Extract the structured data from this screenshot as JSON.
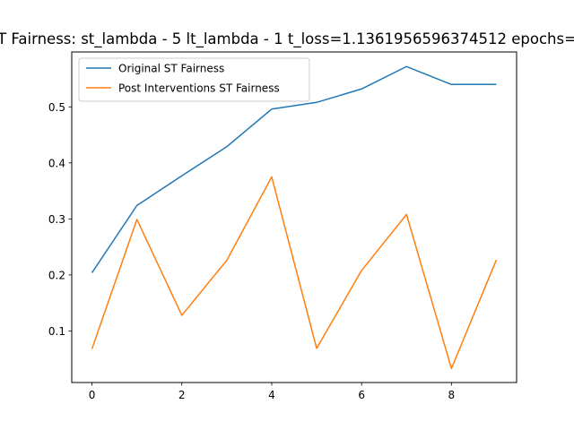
{
  "chart_data": {
    "type": "line",
    "title": "T Fairness: st_lambda - 5 lt_lambda - 1 t_loss=1.1361956596374512 epochs=",
    "xlabel": "",
    "ylabel": "",
    "x": [
      0,
      1,
      2,
      3,
      4,
      5,
      6,
      7,
      8,
      9
    ],
    "xticks": [
      0,
      2,
      4,
      6,
      8
    ],
    "yticks": [
      0.1,
      0.2,
      0.3,
      0.4,
      0.5
    ],
    "xlim": [
      -0.45,
      9.45
    ],
    "ylim": [
      0.008,
      0.598
    ],
    "grid": false,
    "legend_position": "top-left",
    "series": [
      {
        "name": "Original ST Fairness",
        "color": "#1f77b4",
        "values": [
          0.204,
          0.324,
          0.377,
          0.429,
          0.496,
          0.508,
          0.532,
          0.572,
          0.54,
          0.54
        ]
      },
      {
        "name": "Post Interventions ST Fairness",
        "color": "#ff7f0e",
        "values": [
          0.068,
          0.299,
          0.128,
          0.226,
          0.375,
          0.069,
          0.208,
          0.308,
          0.033,
          0.227
        ]
      }
    ]
  }
}
